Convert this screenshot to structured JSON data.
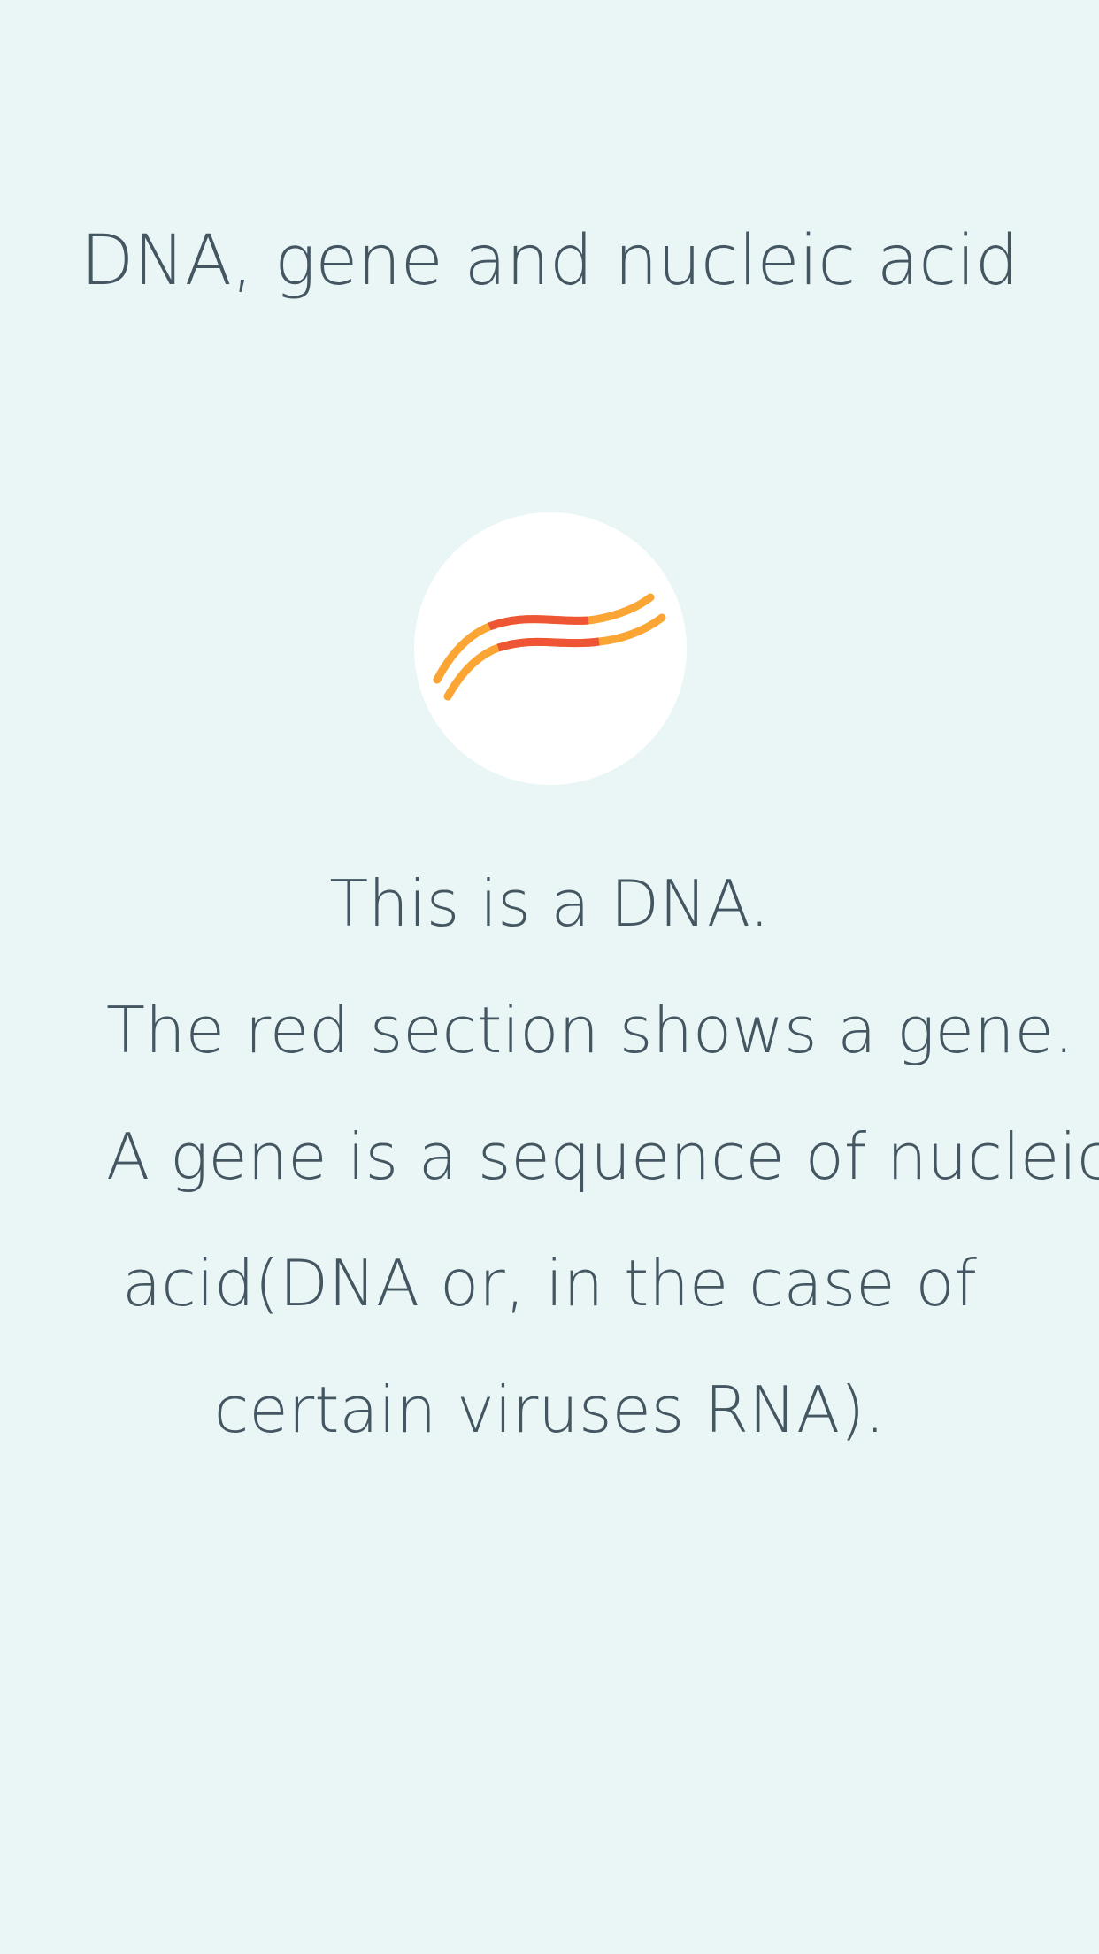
{
  "page": {
    "background_color": "#EAF6F6",
    "text_color": "#435661",
    "title": "DNA, gene and nucleic acid",
    "illustration": {
      "icon": "dna-strand-icon",
      "circle_color": "#FFFFFF",
      "strand_color": "#FBA535",
      "gene_color": "#EE5535"
    },
    "description": {
      "line1": "This is a DNA.",
      "line2": "The red section shows a gene.",
      "line3": "A gene is a sequence of nucleic",
      "line4": "acid(DNA or, in the case of",
      "line5": "certain viruses RNA)."
    }
  }
}
